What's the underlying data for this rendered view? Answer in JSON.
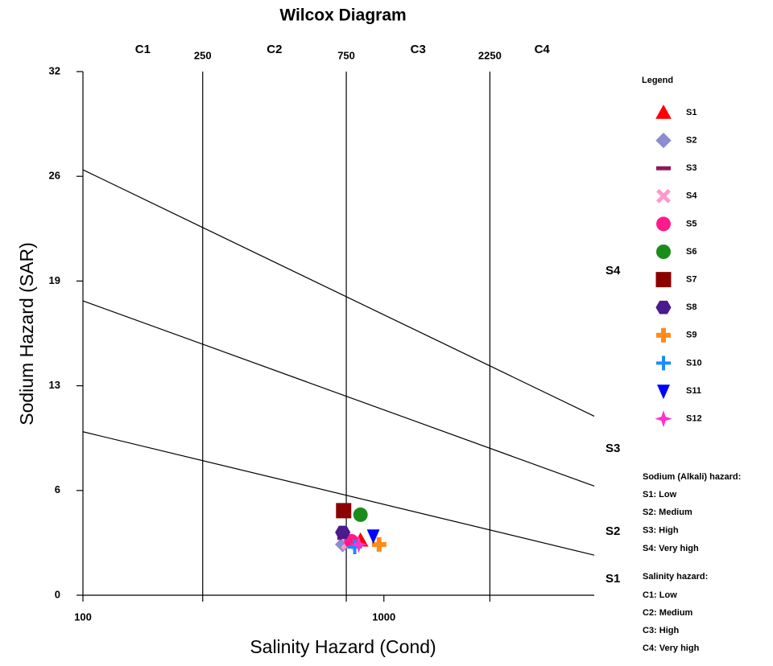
{
  "chart_data": {
    "type": "scatter",
    "title": "Wilcox Diagram",
    "x_label": "Salinity Hazard (Cond)",
    "y_label": "Sodium Hazard (SAR)",
    "log_x": true,
    "xlim": [
      100,
      5000
    ],
    "xticks": [
      100,
      1000
    ],
    "salinity_bounds": [
      250,
      750,
      2250
    ],
    "salinity_classes": [
      "C1",
      "C2",
      "C3",
      "C4"
    ],
    "ylim": [
      0,
      32
    ],
    "yticks": [
      0,
      {
        "value": 6.4,
        "label": "6"
      },
      {
        "value": 12.8,
        "label": "13"
      },
      {
        "value": 19.2,
        "label": "19"
      },
      {
        "value": 25.6,
        "label": "26"
      },
      32
    ],
    "sodium_classes": [
      "S1",
      "S2",
      "S3",
      "S4"
    ],
    "sodium_bounds": [
      {
        "x": [
          100,
          5000
        ],
        "values": [
          9.99,
          2.45
        ]
      },
      {
        "x": [
          100,
          5000
        ],
        "values": [
          17.99,
          6.67
        ]
      },
      {
        "x": [
          100,
          5000
        ],
        "values": [
          26.0,
          10.94
        ]
      }
    ],
    "legend_title": "Legend",
    "series": [
      {
        "name": "S1",
        "color": "#ff0000",
        "marker": "triangle",
        "x": [
          836
        ],
        "values": [
          3.35
        ]
      },
      {
        "name": "S2",
        "color": "#8c8cd0",
        "marker": "diamond",
        "x": [
          730
        ],
        "values": [
          3.1
        ]
      },
      {
        "name": "S3",
        "color": "#8b1a5a",
        "marker": "dash",
        "x": [
          740
        ],
        "values": [
          3.5
        ]
      },
      {
        "name": "S4",
        "color": "#ff99cc",
        "marker": "x",
        "x": [
          760
        ],
        "values": [
          3.2
        ]
      },
      {
        "name": "S5",
        "color": "#ff1a8c",
        "marker": "circle",
        "x": [
          780
        ],
        "values": [
          3.3
        ]
      },
      {
        "name": "S6",
        "color": "#1a8c1a",
        "marker": "circle",
        "x": [
          836
        ],
        "values": [
          4.92
        ]
      },
      {
        "name": "S7",
        "color": "#8b0000",
        "marker": "square",
        "x": [
          735
        ],
        "values": [
          5.17
        ]
      },
      {
        "name": "S8",
        "color": "#4b1a8c",
        "marker": "hexagon",
        "x": [
          730
        ],
        "values": [
          3.84
        ]
      },
      {
        "name": "S9",
        "color": "#ff8c1a",
        "marker": "plus",
        "x": [
          964
        ],
        "values": [
          3.1
        ]
      },
      {
        "name": "S10",
        "color": "#1a8cff",
        "marker": "cross",
        "x": [
          800
        ],
        "values": [
          2.95
        ]
      },
      {
        "name": "S11",
        "color": "#0000ff",
        "marker": "down",
        "x": [
          922
        ],
        "values": [
          3.64
        ]
      },
      {
        "name": "S12",
        "color": "#ff33cc",
        "marker": "star",
        "x": [
          825
        ],
        "values": [
          3.1
        ]
      }
    ],
    "sodium_hazard": {
      "title": "Sodium (Alkali) hazard:",
      "items": [
        "S1: Low",
        "S2: Medium",
        "S3: High",
        "S4: Very high"
      ]
    },
    "salinity_hazard": {
      "title": "Salinity hazard:",
      "items": [
        "C1: Low",
        "C2: Medium",
        "C3: High",
        "C4: Very high"
      ]
    }
  }
}
